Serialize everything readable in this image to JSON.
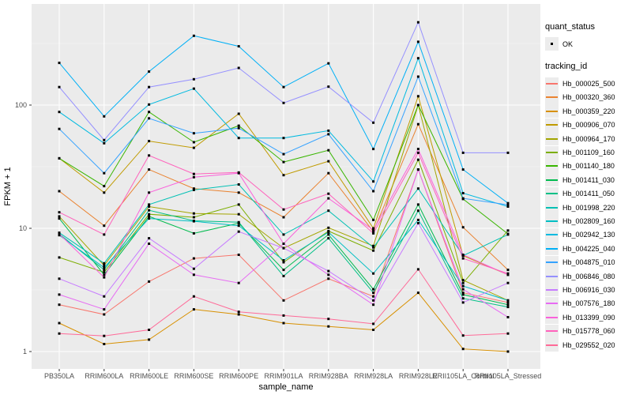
{
  "figure": {
    "background": "#FFFFFF",
    "panel_background": "#EBEBEB",
    "grid_major_color": "#FFFFFF",
    "grid_minor_color": "#F5F5F5",
    "tick_label_color": "#4D4D4D",
    "point_color": "#000000"
  },
  "legend": {
    "quant_status": {
      "title": "quant_status",
      "items": [
        {
          "label": "OK",
          "marker": "black-square"
        }
      ]
    },
    "tracking_id": {
      "title": "tracking_id"
    }
  },
  "chart_data": {
    "type": "line",
    "title": "",
    "xlabel": "sample_name",
    "ylabel": "FPKM + 1",
    "y_scale": "log10",
    "ylim": [
      0.75,
      600
    ],
    "y_ticks": [
      {
        "value": 1,
        "label": "1"
      },
      {
        "value": 10,
        "label": "10"
      },
      {
        "value": 100,
        "label": "100"
      }
    ],
    "y_minor_ticks": [
      3.162,
      31.62,
      316.2
    ],
    "grid": true,
    "legend_position": "right",
    "point_marker": "black-square",
    "categories": [
      "PB350LA",
      "RRIM600LA",
      "RRIM600LE",
      "RRIM600SE",
      "RRIM600PE",
      "RRIM901LA",
      "RRIM928BA",
      "RRIM928LA",
      "RRIM928LE",
      "RRII105LA_Control",
      "RRII105LA_Stressed"
    ],
    "series": [
      {
        "name": "Hb_000025_500",
        "color": "#F8766D",
        "values": [
          2.4,
          2.0,
          3.7,
          5.7,
          6.1,
          2.6,
          3.9,
          2.8,
          30,
          3.0,
          2.5
        ]
      },
      {
        "name": "Hb_000320_360",
        "color": "#EA8331",
        "values": [
          20,
          10.5,
          30,
          21,
          19.5,
          12.3,
          28,
          9.4,
          70,
          10.2,
          4.6
        ]
      },
      {
        "name": "Hb_000359_220",
        "color": "#D89000",
        "values": [
          1.7,
          1.15,
          1.25,
          2.2,
          2.0,
          1.7,
          1.6,
          1.5,
          3.0,
          1.05,
          1.0
        ]
      },
      {
        "name": "Hb_000906_070",
        "color": "#C09B00",
        "values": [
          37,
          19.5,
          51,
          45,
          85,
          27,
          35,
          10,
          118,
          6.0,
          4.2
        ]
      },
      {
        "name": "Hb_000964_170",
        "color": "#A3A500",
        "values": [
          12.5,
          5.0,
          15,
          13.2,
          13,
          6.9,
          10.1,
          7.2,
          100,
          3.8,
          2.6
        ]
      },
      {
        "name": "Hb_001109_160",
        "color": "#7CAE00",
        "values": [
          5.8,
          4.4,
          13,
          12.3,
          15.6,
          5.3,
          9.5,
          6.6,
          36,
          3.6,
          9.6
        ]
      },
      {
        "name": "Hb_001140_180",
        "color": "#39B600",
        "values": [
          37,
          22,
          88,
          50,
          68,
          34.5,
          43,
          11.7,
          100,
          17.3,
          9.0
        ]
      },
      {
        "name": "Hb_001411_030",
        "color": "#00BB4E",
        "values": [
          12,
          4.2,
          12.5,
          9.1,
          11,
          4.6,
          8.9,
          3.2,
          15.6,
          2.9,
          2.4
        ]
      },
      {
        "name": "Hb_001411_050",
        "color": "#00C087",
        "values": [
          9.0,
          4.6,
          14,
          11.5,
          11.2,
          4.1,
          8.3,
          3.0,
          13.9,
          2.7,
          2.3
        ]
      },
      {
        "name": "Hb_001998_220",
        "color": "#00C0B4",
        "values": [
          9.2,
          5.2,
          15.6,
          20.5,
          22.7,
          8.9,
          13.9,
          7.0,
          21,
          6.0,
          8.9
        ]
      },
      {
        "name": "Hb_002809_160",
        "color": "#00BFC4",
        "values": [
          8.8,
          4.8,
          12,
          11.4,
          10.5,
          5.5,
          9.3,
          4.3,
          11.7,
          3.4,
          2.6
        ]
      },
      {
        "name": "Hb_002942_130",
        "color": "#00BAE0",
        "values": [
          88,
          49,
          101,
          136,
          54,
          54,
          62,
          24,
          240,
          19.3,
          15
        ]
      },
      {
        "name": "Hb_004225_040",
        "color": "#00B0F6",
        "values": [
          220,
          81,
          187,
          365,
          300,
          140,
          218,
          44,
          326,
          30,
          16
        ]
      },
      {
        "name": "Hb_004875_010",
        "color": "#35A2FF",
        "values": [
          64,
          28,
          78,
          59,
          65,
          40,
          58,
          20,
          170,
          17.5,
          15.5
        ]
      },
      {
        "name": "Hb_006846_080",
        "color": "#9590FF",
        "values": [
          140,
          52,
          140,
          162,
          200,
          104,
          141,
          72,
          470,
          41,
          41
        ]
      },
      {
        "name": "Hb_006916_030",
        "color": "#C77CFF",
        "values": [
          3.9,
          2.8,
          8.3,
          4.7,
          9.4,
          6.9,
          4.5,
          2.6,
          11,
          2.5,
          3.6
        ]
      },
      {
        "name": "Hb_007576_180",
        "color": "#E76BF3",
        "values": [
          2.9,
          2.2,
          7.5,
          4.2,
          3.6,
          7.5,
          4.2,
          2.4,
          30,
          3.2,
          1.9
        ]
      },
      {
        "name": "Hb_013399_090",
        "color": "#FA62DB",
        "values": [
          9.0,
          4.0,
          19.5,
          26,
          28,
          7.5,
          17.5,
          9.7,
          44,
          6.1,
          4.2
        ]
      },
      {
        "name": "Hb_015778_060",
        "color": "#FF62BC",
        "values": [
          13.5,
          8.9,
          39,
          27.6,
          28.4,
          14.2,
          19.1,
          9.1,
          41,
          5.7,
          4.3
        ]
      },
      {
        "name": "Hb_029552_020",
        "color": "#FF6A98",
        "values": [
          1.4,
          1.34,
          1.5,
          2.8,
          2.1,
          1.96,
          1.84,
          1.68,
          4.65,
          1.35,
          1.4
        ]
      }
    ]
  }
}
